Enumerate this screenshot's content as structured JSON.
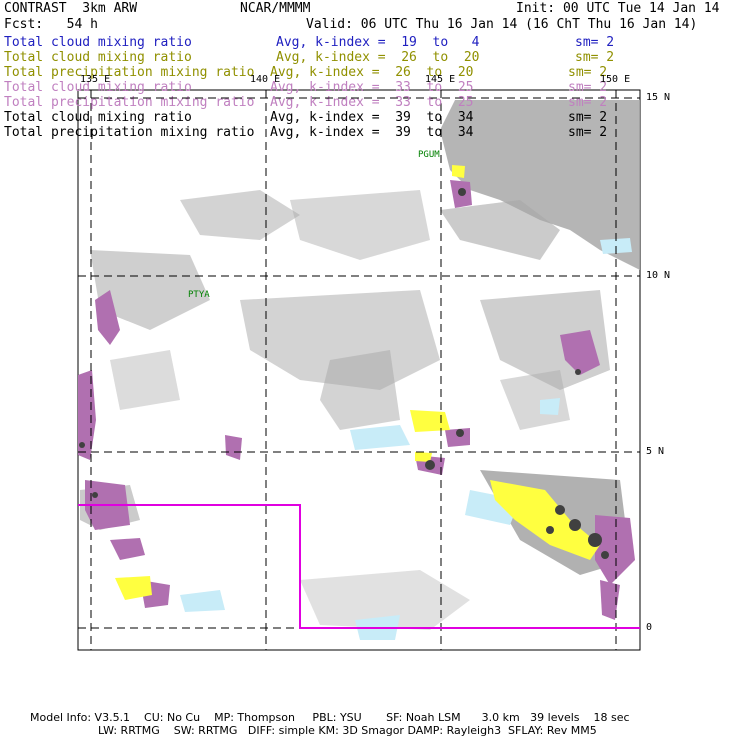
{
  "header": {
    "model": "CONTRAST  3km ARW",
    "org": "NCAR/MMMM",
    "init": "Init: 00 UTC Tue 14 Jan 14",
    "fcst": "Fcst:   54 h",
    "valid": "Valid: 06 UTC Thu 16 Jan 14 (16 ChT Thu 16 Jan 14)"
  },
  "legend": [
    {
      "field": "Total cloud mixing ratio",
      "avg": "Avg, k-index =  19  to   4",
      "sm": "sm= 2",
      "color": "#2020c0"
    },
    {
      "field": "Total cloud mixing ratio",
      "avg": "Avg, k-index =  26  to  20",
      "sm": "sm= 2",
      "color": "#909000"
    },
    {
      "field": "Total precipitation mixing ratio",
      "avg": "Avg, k-index =  26  to  20",
      "sm": "sm= 2",
      "color": "#909000"
    },
    {
      "field": "Total cloud mixing ratio",
      "avg": "Avg, k-index =  33  to  25",
      "sm": "sm= 2",
      "color": "#c080c0"
    },
    {
      "field": "Total precipitation mixing ratio",
      "avg": "Avg, k-index =  33  to  25",
      "sm": "sm= 2",
      "color": "#c080c0"
    },
    {
      "field": "Total cloud mixing ratio",
      "avg": "Avg, k-index =  39  to  34",
      "sm": "sm= 2",
      "color": "#000000"
    },
    {
      "field": "Total precipitation mixing ratio",
      "avg": "Avg, k-index =  39  to  34",
      "sm": "sm= 2",
      "color": "#000000"
    }
  ],
  "axes": {
    "lon_labels": [
      "135 E",
      "140 E",
      "145 E",
      "150 E"
    ],
    "lat_labels": [
      "15 N",
      "10 N",
      "5 N",
      "0"
    ]
  },
  "stations": [
    "PGUM",
    "PTYA"
  ],
  "footer": {
    "line1": "Model Info: V3.5.1    CU: No Cu    MP: Thompson     PBL: YSU       SF: Noah LSM      3.0 km   39 levels    18 sec",
    "line2": "LW: RRTMG    SW: RRTMG   DIFF: simple KM: 3D Smagor DAMP: Rayleigh3  SFLAY: Rev MM5"
  },
  "colors": {
    "gray": "#a0a0a0",
    "dark": "#404040",
    "magenta": "#b070b0",
    "yellow": "#ffff40",
    "cyan": "#c8ecf8",
    "boundary": "#e000e0",
    "station": "#008000"
  }
}
